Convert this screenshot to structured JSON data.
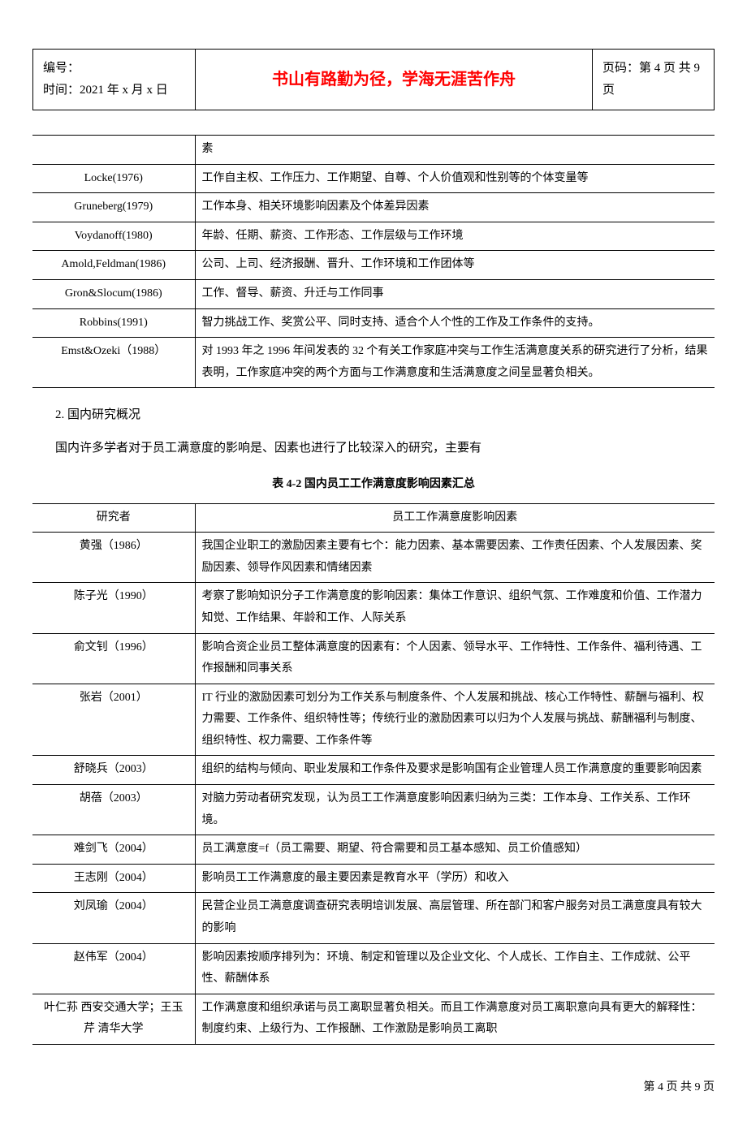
{
  "header": {
    "number_label": "编号：",
    "date_label": "时间：2021 年 x 月 x 日",
    "motto": "书山有路勤为径，学海无涯苦作舟",
    "page_label": "页码：第 4 页 共 9 页"
  },
  "table1": {
    "rows": [
      {
        "c1": "",
        "c2": "素"
      },
      {
        "c1": "Locke(1976)",
        "c2": "工作自主权、工作压力、工作期望、自尊、个人价值观和性别等的个体变量等"
      },
      {
        "c1": "Gruneberg(1979)",
        "c2": "工作本身、相关环境影响因素及个体差异因素"
      },
      {
        "c1": "Voydanoff(1980)",
        "c2": "年龄、任期、薪资、工作形态、工作层级与工作环境"
      },
      {
        "c1": "Amold,Feldman(1986)",
        "c2": "公司、上司、经济报酬、晋升、工作环境和工作团体等"
      },
      {
        "c1": "Gron&Slocum(1986)",
        "c2": "工作、督导、薪资、升迁与工作同事"
      },
      {
        "c1": "Robbins(1991)",
        "c2": "智力挑战工作、奖赏公平、同时支持、适合个人个性的工作及工作条件的支持。"
      },
      {
        "c1": "Emst&Ozeki（1988）",
        "c2": "对 1993 年之 1996 年间发表的 32 个有关工作家庭冲突与工作生活满意度关系的研究进行了分析，结果表明，工作家庭冲突的两个方面与工作满意度和生活满意度之间呈显著负相关。"
      }
    ]
  },
  "section2": {
    "heading": "2. 国内研究概况",
    "paragraph": "国内许多学者对于员工满意度的影响是、因素也进行了比较深入的研究，主要有",
    "caption": "表 4-2 国内员工工作满意度影响因素汇总"
  },
  "table2": {
    "header": {
      "c1": "研究者",
      "c2": "员工工作满意度影响因素"
    },
    "rows": [
      {
        "c1": "黄强（1986）",
        "c2": "我国企业职工的激励因素主要有七个：能力因素、基本需要因素、工作责任因素、个人发展因素、奖励因素、领导作风因素和情绪因素"
      },
      {
        "c1": "陈子光（1990）",
        "c2": "考察了影响知识分子工作满意度的影响因素：集体工作意识、组织气氛、工作难度和价值、工作潜力知觉、工作结果、年龄和工作、人际关系"
      },
      {
        "c1": "俞文钊（1996）",
        "c2": "影响合资企业员工整体满意度的因素有：个人因素、领导水平、工作特性、工作条件、福利待遇、工作报酬和同事关系"
      },
      {
        "c1": "张岩（2001）",
        "c2": "IT 行业的激励因素可划分为工作关系与制度条件、个人发展和挑战、核心工作特性、薪酬与福利、权力需要、工作条件、组织特性等；传统行业的激励因素可以归为个人发展与挑战、薪酬福利与制度、组织特性、权力需要、工作条件等"
      },
      {
        "c1": "舒晓兵（2003）",
        "c2": "组织的结构与倾向、职业发展和工作条件及要求是影响国有企业管理人员工作满意度的重要影响因素"
      },
      {
        "c1": "胡蓓（2003）",
        "c2": "对脑力劳动者研究发现，认为员工工作满意度影响因素归纳为三类：工作本身、工作关系、工作环境。"
      },
      {
        "c1": "难剑飞（2004）",
        "c2": "员工满意度=f（员工需要、期望、符合需要和员工基本感知、员工价值感知）"
      },
      {
        "c1": "王志刚（2004）",
        "c2": "影响员工工作满意度的最主要因素是教育水平（学历）和收入"
      },
      {
        "c1": "刘凤瑜（2004）",
        "c2": "民营企业员工满意度调查研究表明培训发展、高层管理、所在部门和客户服务对员工满意度具有较大的影响"
      },
      {
        "c1": "赵伟军（2004）",
        "c2": "影响因素按顺序排列为：环境、制定和管理以及企业文化、个人成长、工作自主、工作成就、公平性、薪酬体系"
      },
      {
        "c1": "叶仁荪 西安交通大学；王玉芹 清华大学",
        "c2": "工作满意度和组织承诺与员工离职显著负相关。而且工作满意度对员工离职意向具有更大的解释性：制度约束、上级行为、工作报酬、工作激励是影响员工离职"
      }
    ]
  },
  "footer": "第 4 页 共 9 页"
}
